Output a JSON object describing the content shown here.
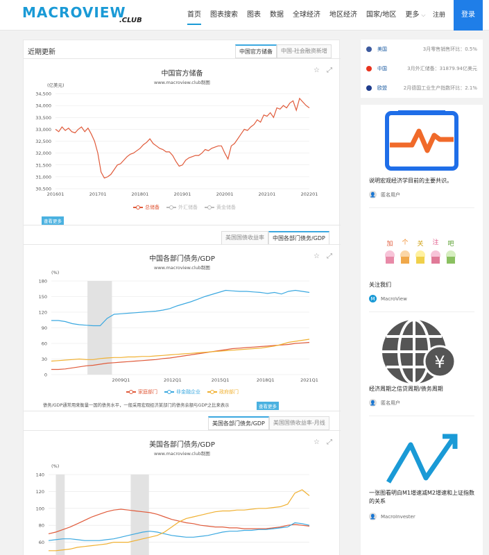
{
  "header": {
    "logo_main": "MACROVIEW",
    "logo_sub": ".CLUB",
    "nav": [
      "首页",
      "图表搜索",
      "图表",
      "数据",
      "全球经济",
      "地区经济",
      "国家/地区",
      "更多"
    ],
    "register": "注册",
    "login": "登录"
  },
  "main": {
    "panel_title": "近期更新",
    "tabs1": [
      "中国官方储备",
      "中国-社会融资新增"
    ],
    "tabs2": [
      "美国国债收益率",
      "中国各部门债务/GDP"
    ],
    "tabs3": [
      "美国各部门债务/GDP",
      "美国国债收益率-月线"
    ],
    "more_label": "查看更多",
    "desc": "债务/GDP通常用来衡量一国的债务水平，一般采用宏观经济某部门的债务余额与GDP之比来表示"
  },
  "chart_data": [
    {
      "type": "line",
      "title": "中国官方储备",
      "subtitle": "www.macroview.club制图",
      "ylabel": "(亿美元)",
      "ylim": [
        30500,
        34500
      ],
      "yticks": [
        "34,500",
        "34,000",
        "33,500",
        "33,000",
        "32,500",
        "32,000",
        "31,500",
        "31,000",
        "30,500"
      ],
      "xticks": [
        "201601",
        "201701",
        "201801",
        "201901",
        "202001",
        "202101",
        "202201"
      ],
      "series": [
        {
          "name": "总储备",
          "color": "#e05a3a",
          "x_start": 2016.0,
          "x_step": 0.0833,
          "values": [
            33000,
            32900,
            33100,
            32950,
            33050,
            32900,
            32850,
            33000,
            33100,
            32900,
            33050,
            32800,
            32500,
            32000,
            31200,
            30950,
            31000,
            31100,
            31300,
            31500,
            31550,
            31700,
            31850,
            31950,
            32000,
            32100,
            32200,
            32350,
            32450,
            32600,
            32400,
            32300,
            32200,
            32150,
            32050,
            32050,
            31900,
            31650,
            31450,
            31500,
            31700,
            31800,
            31850,
            31900,
            31900,
            32000,
            32150,
            32100,
            32200,
            32250,
            32300,
            32300,
            32000,
            31750,
            32300,
            32400,
            32600,
            32800,
            33000,
            32950,
            33100,
            33200,
            33400,
            33300,
            33600,
            33550,
            33700,
            33500,
            33900,
            33850,
            34000,
            33900,
            34100,
            34200,
            33800,
            34300,
            34150,
            34000,
            33900
          ]
        },
        {
          "name": "外汇储备",
          "color": "#bbbbbb",
          "values": []
        },
        {
          "name": "黄金储备",
          "color": "#bbbbbb",
          "values": []
        }
      ]
    },
    {
      "type": "line",
      "title": "中国各部门债务/GDP",
      "subtitle": "www.macroview.club制图",
      "ylabel": "(%)",
      "ylim": [
        0,
        180
      ],
      "yticks": [
        "180",
        "150",
        "120",
        "90",
        "60",
        "30",
        "0"
      ],
      "xticks": [
        "2009Q1",
        "2012Q1",
        "2015Q1",
        "2018Q1",
        "2021Q1"
      ],
      "series": [
        {
          "name": "家庭部门",
          "color": "#e05a3a",
          "values": [
            10,
            10,
            11,
            13,
            15,
            17,
            18,
            20,
            22,
            23,
            24,
            25,
            26,
            27,
            28,
            29,
            31,
            32,
            34,
            36,
            38,
            40,
            42,
            44,
            46,
            48,
            50,
            51,
            52,
            53,
            54,
            55,
            56,
            57,
            58,
            60,
            61,
            62
          ]
        },
        {
          "name": "非金融企业",
          "color": "#3aa8e0",
          "values": [
            104,
            104,
            102,
            98,
            96,
            95,
            94,
            94,
            108,
            116,
            117,
            118,
            119,
            120,
            121,
            122,
            124,
            127,
            132,
            136,
            140,
            145,
            150,
            154,
            158,
            162,
            161,
            160,
            160,
            159,
            158,
            156,
            158,
            155,
            160,
            162,
            160,
            158
          ]
        },
        {
          "name": "政府部门",
          "color": "#f0b030",
          "values": [
            26,
            27,
            28,
            29,
            30,
            29,
            29,
            31,
            32,
            33,
            33,
            34,
            34,
            35,
            35,
            36,
            37,
            38,
            39,
            40,
            41,
            42,
            43,
            44,
            45,
            46,
            47,
            48,
            49,
            50,
            51,
            53,
            55,
            58,
            62,
            64,
            66,
            68
          ]
        }
      ]
    },
    {
      "type": "line",
      "title": "美国各部门债务/GDP",
      "subtitle": "www.macroview.club制图",
      "ylabel": "(%)",
      "ylim": [
        40,
        140
      ],
      "yticks": [
        "140",
        "120",
        "100",
        "80",
        "60",
        "40"
      ],
      "xticks": [],
      "series": [
        {
          "name": "家庭部门",
          "color": "#e05a3a",
          "values": [
            70,
            72,
            75,
            78,
            82,
            86,
            90,
            93,
            96,
            98,
            99,
            98,
            97,
            96,
            95,
            93,
            90,
            87,
            85,
            83,
            82,
            80,
            79,
            78,
            78,
            77,
            77,
            76,
            76,
            76,
            76,
            77,
            78,
            80,
            81,
            80,
            79
          ]
        },
        {
          "name": "非金融企业",
          "color": "#3aa8e0",
          "values": [
            62,
            63,
            64,
            64,
            63,
            62,
            62,
            62,
            63,
            64,
            66,
            68,
            70,
            72,
            73,
            72,
            70,
            68,
            67,
            66,
            66,
            67,
            68,
            70,
            72,
            73,
            73,
            74,
            74,
            75,
            75,
            76,
            77,
            78,
            83,
            82,
            80
          ]
        },
        {
          "name": "政府部门",
          "color": "#f0b030",
          "values": [
            50,
            50,
            51,
            52,
            54,
            55,
            56,
            57,
            58,
            60,
            60,
            60,
            62,
            64,
            66,
            68,
            72,
            78,
            84,
            88,
            90,
            92,
            94,
            96,
            97,
            97,
            98,
            98,
            99,
            100,
            100,
            101,
            102,
            105,
            118,
            122,
            115
          ]
        }
      ]
    }
  ],
  "sidebar": {
    "news": [
      {
        "country": "美国",
        "text": "3月零售销售环比：0.5%",
        "flag_color": "#3d5a9e"
      },
      {
        "country": "中国",
        "text": "3月外汇储备：31879.94亿美元",
        "flag_color": "#e8331e"
      },
      {
        "country": "欧盟",
        "text": "2月德国工业生产指数环比：2.1%",
        "flag_color": "#1f3c8c"
      }
    ],
    "cards": [
      {
        "title": "说明宏观经济学目前的主要共识。",
        "author": "匿名用户",
        "avatar_label": ""
      },
      {
        "title": "关注我们",
        "author": "MacroView",
        "avatar_label": "M"
      },
      {
        "title": "经济周期之信贷周期/债务周期",
        "author": "匿名用户",
        "avatar_label": ""
      },
      {
        "title": "一张图看明白M1增速减M2增速和上证指数的关系",
        "author": "MacroInvester",
        "avatar_label": ""
      }
    ],
    "follow_letters": [
      "加",
      "个",
      "关",
      "注",
      "吧"
    ],
    "yen_symbol": "¥"
  }
}
